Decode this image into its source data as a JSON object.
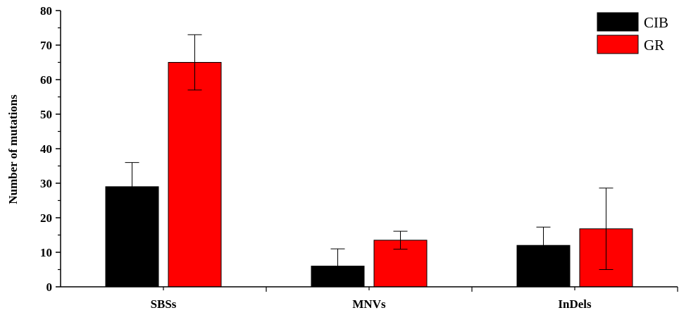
{
  "chart_data": {
    "type": "bar",
    "categories": [
      "SBSs",
      "MNVs",
      "InDels"
    ],
    "series": [
      {
        "name": "CIB",
        "values": [
          29,
          6,
          12
        ],
        "errors": [
          7,
          5,
          5.3
        ],
        "color": "#000000"
      },
      {
        "name": "GR",
        "values": [
          65,
          13.5,
          16.8
        ],
        "errors": [
          8,
          2.6,
          11.8
        ],
        "color": "#ff0000"
      }
    ],
    "title": "",
    "xlabel": "",
    "ylabel": "Number of mutations",
    "ylim": [
      0,
      80
    ],
    "yticks": [
      0,
      10,
      20,
      30,
      40,
      50,
      60,
      70,
      80
    ],
    "grid": false,
    "legend_position": "top-right"
  }
}
